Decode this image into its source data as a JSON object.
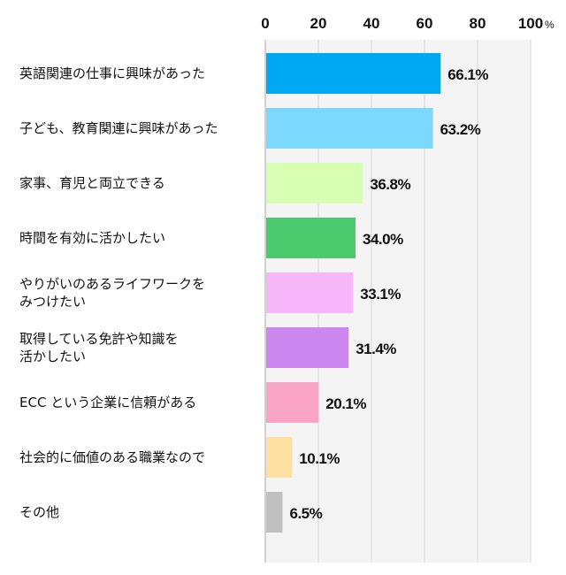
{
  "chart_data": {
    "type": "bar",
    "orientation": "horizontal",
    "categories": [
      [
        "英語関連の仕事に興味があった"
      ],
      [
        "子ども、教育関連に興味があった"
      ],
      [
        "家事、育児と両立できる"
      ],
      [
        "時間を有効に活かしたい"
      ],
      [
        "やりがいのあるライフワークを",
        "みつけたい"
      ],
      [
        "取得している免許や知識を",
        "活かしたい"
      ],
      [
        "ECC という企業に信頼がある"
      ],
      [
        "社会的に価値のある職業なので"
      ],
      [
        "その他"
      ]
    ],
    "values": [
      66.1,
      63.2,
      36.8,
      34.0,
      33.1,
      31.4,
      20.1,
      10.1,
      6.5
    ],
    "value_labels": [
      "66.1%",
      "63.2%",
      "36.8%",
      "34.0%",
      "33.1%",
      "31.4%",
      "20.1%",
      "10.1%",
      "6.5%"
    ],
    "colors": [
      "#00a9f4",
      "#7dd8ff",
      "#d6ffb3",
      "#4ccb6e",
      "#f7b6f8",
      "#cc88ee",
      "#f9a4c2",
      "#fde0a2",
      "#c0c0c0"
    ],
    "xlim": [
      0,
      100
    ],
    "ticks": [
      "0",
      "20",
      "40",
      "60",
      "80",
      "100"
    ],
    "tick_values": [
      0,
      20,
      40,
      60,
      80,
      100
    ],
    "unit": "%",
    "grid": true,
    "plot_background": "#f4f4f4",
    "grid_color": "#d9d9d9"
  }
}
